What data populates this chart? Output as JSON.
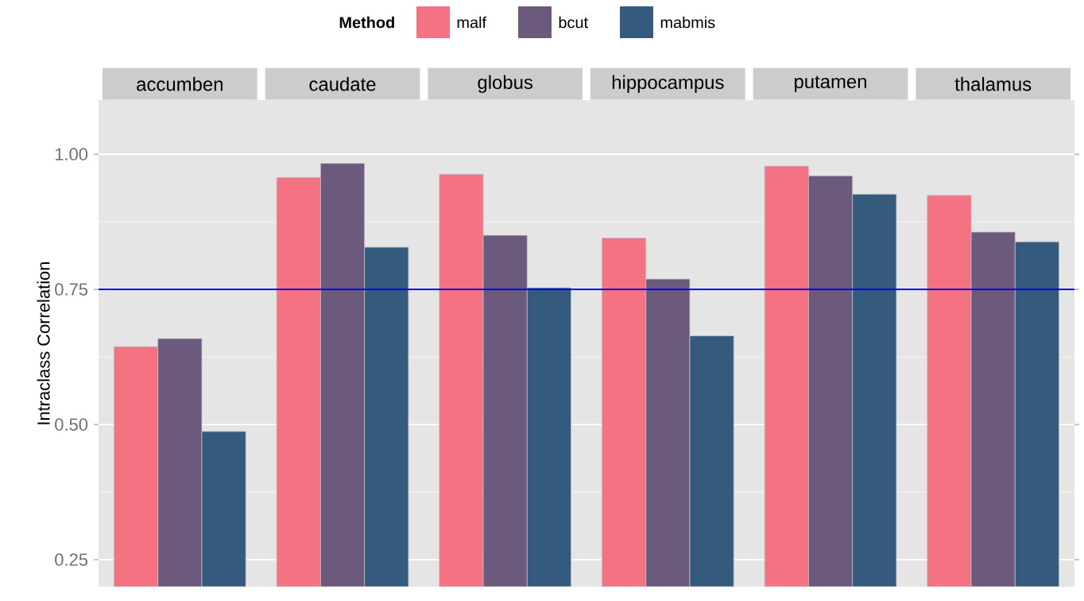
{
  "chart_data": {
    "type": "bar",
    "ylabel": "Intraclass Correlation",
    "legend_title": "Method",
    "legend": "top",
    "categories": [
      "accumben",
      "caudate",
      "globus",
      "hippocampus",
      "putamen",
      "thalamus"
    ],
    "ylim": [
      0.2,
      1.1
    ],
    "yticks": [
      {
        "value": 0.25,
        "label": "0.25"
      },
      {
        "value": 0.5,
        "label": "0.50"
      },
      {
        "value": 0.75,
        "label": "0.75"
      },
      {
        "value": 1.0,
        "label": "1.00"
      }
    ],
    "grid": "y",
    "ref_lines": [
      {
        "axis": "y",
        "value": 0.75,
        "color": "#0000ff"
      }
    ],
    "series": [
      {
        "name": "malf",
        "color": "#f47281",
        "values": [
          0.644,
          0.957,
          0.963,
          0.845,
          0.978,
          0.924
        ]
      },
      {
        "name": "bcut",
        "color": "#6b5a7b",
        "values": [
          0.659,
          0.983,
          0.85,
          0.769,
          0.96,
          0.856
        ]
      },
      {
        "name": "mabmis",
        "color": "#345b7d",
        "values": [
          0.487,
          0.828,
          0.753,
          0.664,
          0.926,
          0.838
        ]
      }
    ]
  }
}
